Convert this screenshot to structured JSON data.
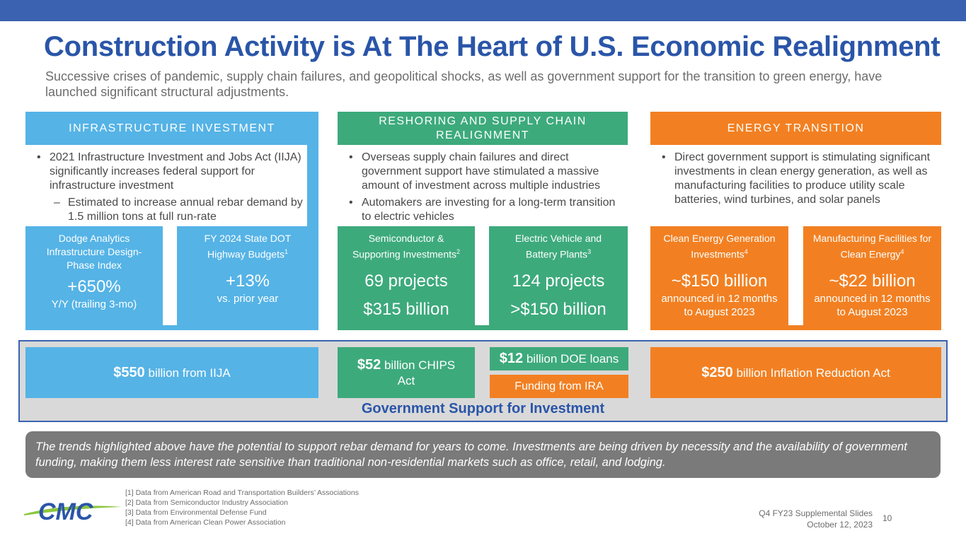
{
  "title": "Construction Activity is At The Heart of U.S. Economic Realignment",
  "subtitle": "Successive crises of pandemic, supply chain failures, and geopolitical shocks, as well as government support for the transition to green energy, have launched significant structural adjustments.",
  "columns": {
    "infrastructure": {
      "header": "INFRASTRUCTURE INVESTMENT",
      "bullet1": "2021 Infrastructure Investment and Jobs Act (IIJA) significantly increases federal support for infrastructure investment",
      "sub1": "Estimated to increase annual rebar demand by 1.5 million tons at full run-rate",
      "stat1": {
        "label": "Dodge Analytics Infrastructure Design-Phase Index",
        "big": "+650%",
        "small": "Y/Y (trailing 3-mo)"
      },
      "stat2": {
        "label": "FY 2024 State DOT Highway Budgets",
        "sup": "1",
        "big": "+13%",
        "small": "vs. prior year"
      }
    },
    "reshoring": {
      "header": "RESHORING AND SUPPLY CHAIN REALIGNMENT",
      "bullet1": "Overseas supply chain failures and direct government support have stimulated a massive amount of investment across multiple industries",
      "bullet2": "Automakers are investing for a long-term transition to electric vehicles",
      "stat1": {
        "label": "Semiconductor & Supporting Investments",
        "sup": "2",
        "big1": "69 projects",
        "big2": "$315 billion"
      },
      "stat2": {
        "label": "Electric Vehicle and Battery Plants",
        "sup": "3",
        "big1": "124 projects",
        "big2": ">$150 billion"
      }
    },
    "energy": {
      "header": "ENERGY TRANSITION",
      "bullet1": "Direct government support is stimulating significant investments in clean energy generation, as well as manufacturing facilities to produce utility scale batteries, wind turbines, and solar panels",
      "stat1": {
        "label": "Clean Energy Generation Investments",
        "sup": "4",
        "big": "~$150 billion",
        "small": "announced in 12 months to August 2023"
      },
      "stat2": {
        "label": "Manufacturing Facilities for Clean Energy",
        "sup": "4",
        "big": "~$22 billion",
        "small": "announced in 12 months to August 2023"
      }
    }
  },
  "government": {
    "iija_amount": "$550",
    "iija_text": "billion from IIJA",
    "chips_amount": "$52",
    "chips_text": "billion CHIPS Act",
    "doe_amount": "$12",
    "doe_text": "billion DOE loans",
    "ira_funding": "Funding from IRA",
    "ira_amount": "$250",
    "ira_text": "billion Inflation Reduction Act",
    "title": "Government Support for Investment"
  },
  "note": "The trends highlighted above have the potential to support rebar demand for years to come.  Investments are being driven by necessity and the availability of government funding, making them less interest rate sensitive than traditional non-residential markets such as office, retail, and lodging.",
  "footnotes": [
    "[1] Data from American Road and Transportation Builders’ Associations",
    "[2] Data from Semiconductor Industry Association",
    "[3] Data from Environmental Defense Fund",
    "[4] Data from American Clean Power Association"
  ],
  "logo_text": "CMC",
  "footer": {
    "line1": "Q4 FY23 Supplemental Slides",
    "line2": "October 12, 2023",
    "page": "10"
  },
  "colors": {
    "accent_blue": "#2a55a8",
    "infra": "#55b3e6",
    "reshoring": "#3daa7c",
    "energy": "#f28022"
  }
}
